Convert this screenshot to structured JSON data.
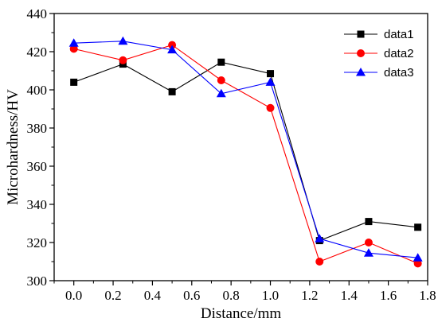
{
  "chart_data": {
    "type": "line",
    "title": "",
    "xlabel": "Distance/mm",
    "ylabel": "Microhardness/HV",
    "xlim": [
      -0.1,
      1.8
    ],
    "ylim": [
      300,
      440
    ],
    "xticks": [
      "0.0",
      "0.2",
      "0.4",
      "0.6",
      "0.8",
      "1.0",
      "1.2",
      "1.4",
      "1.6",
      "1.8"
    ],
    "yticks": [
      "300",
      "320",
      "340",
      "360",
      "380",
      "400",
      "420",
      "440"
    ],
    "grid": false,
    "legend_position": "top-right",
    "x": [
      0.0,
      0.25,
      0.5,
      0.75,
      1.0,
      1.25,
      1.5,
      1.75
    ],
    "series": [
      {
        "name": "data1",
        "color": "#000000",
        "marker": "square",
        "values": [
          404,
          413.5,
          399,
          414.5,
          408.5,
          321,
          331,
          328
        ]
      },
      {
        "name": "data2",
        "color": "#ff0000",
        "marker": "circle",
        "values": [
          421.5,
          415.5,
          423.5,
          405,
          390.5,
          310,
          320,
          309
        ]
      },
      {
        "name": "data3",
        "color": "#0000ff",
        "marker": "triangle",
        "values": [
          424.5,
          425.5,
          421,
          398,
          404,
          322,
          314.5,
          312
        ]
      }
    ]
  }
}
